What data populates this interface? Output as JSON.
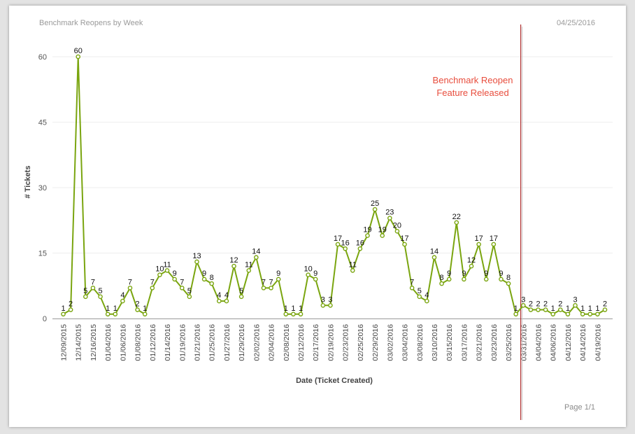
{
  "report": {
    "title": "Benchmark Reopens by Week",
    "date": "04/25/2016",
    "page": "Page 1/1"
  },
  "colors": {
    "line": "#7aa50f",
    "marker_fill": "#ffffff",
    "annotation": "#e84d3d",
    "marker_line": "#b03030",
    "grid": "#eeeeee"
  },
  "chart_data": {
    "type": "line",
    "title": "",
    "xlabel": "Date (Ticket Created)",
    "ylabel": "# Tickets",
    "ylim": [
      0,
      60
    ],
    "yticks": [
      0,
      15,
      30,
      45,
      60
    ],
    "grid": true,
    "series": [
      {
        "values": [
          1,
          2,
          60,
          5,
          7,
          5,
          1,
          1,
          4,
          7,
          2,
          1,
          7,
          10,
          11,
          9,
          7,
          5,
          13,
          9,
          8,
          4,
          4,
          12,
          5,
          11,
          14,
          7,
          7,
          9,
          1,
          1,
          1,
          10,
          9,
          3,
          3,
          17,
          16,
          11,
          16,
          19,
          25,
          19,
          23,
          20,
          17,
          7,
          5,
          4,
          14,
          8,
          9,
          22,
          9,
          12,
          17,
          9,
          17,
          9,
          8,
          1,
          3,
          2,
          2,
          2,
          1,
          2,
          1,
          3,
          1,
          1,
          1,
          2
        ]
      }
    ],
    "x_tick_labels": [
      "12/09/2015",
      "12/14/2015",
      "12/16/2015",
      "01/04/2016",
      "01/06/2016",
      "01/08/2016",
      "01/12/2016",
      "01/14/2016",
      "01/19/2016",
      "01/21/2016",
      "01/25/2016",
      "01/27/2016",
      "01/29/2016",
      "02/02/2016",
      "02/04/2016",
      "02/08/2016",
      "02/12/2016",
      "02/17/2016",
      "02/19/2016",
      "02/23/2016",
      "02/25/2016",
      "02/29/2016",
      "03/02/2016",
      "03/04/2016",
      "03/08/2016",
      "03/10/2016",
      "03/15/2016",
      "03/17/2016",
      "03/21/2016",
      "03/23/2016",
      "03/25/2016",
      "03/31/2016",
      "04/04/2016",
      "04/06/2016",
      "04/12/2016",
      "04/14/2016",
      "04/19/2016"
    ],
    "annotations": [
      {
        "lines": [
          "Benchmark Reopen",
          "Feature Released"
        ],
        "marker_after_point_index": 61
      }
    ]
  }
}
